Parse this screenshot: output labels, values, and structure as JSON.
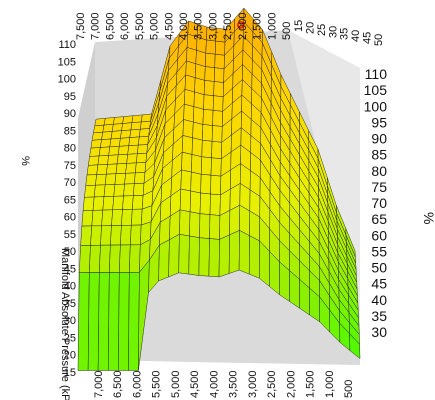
{
  "chart_data": {
    "type": "surface",
    "title": "",
    "z_unit": "%",
    "z_unit_right": "%",
    "y_axis_label": "Manifold Absolute Pressure (kPa)",
    "top_axis_ticks": [
      "7,500",
      "7,000",
      "6,500",
      "6,000",
      "5,500",
      "5,000",
      "4,500",
      "4,000",
      "3,500",
      "3,000",
      "2,500",
      "2,000",
      "1,500",
      "1,000",
      "500"
    ],
    "top_right_ticks": [
      "15",
      "20",
      "25",
      "30",
      "35",
      "40",
      "45",
      "50"
    ],
    "z_ticks_left": [
      "110",
      "105",
      "100",
      "95",
      "90",
      "85",
      "80",
      "75",
      "70",
      "65",
      "60",
      "55",
      "50",
      "45",
      "40",
      "35",
      "30",
      "25",
      "20",
      "15"
    ],
    "z_ticks_right": [
      "110",
      "105",
      "100",
      "95",
      "90",
      "85",
      "80",
      "75",
      "70",
      "65",
      "60",
      "55",
      "50",
      "45",
      "40",
      "35",
      "30"
    ],
    "bottom_ticks": [
      "7,000",
      "6,500",
      "6,000",
      "5,500",
      "5,000",
      "4,500",
      "4,000",
      "3,500",
      "3,000",
      "2,500",
      "2,000",
      "1,500",
      "1,000",
      "500"
    ],
    "rpm": [
      7500,
      7000,
      6500,
      6000,
      5500,
      5000,
      4500,
      4000,
      3500,
      3000,
      2500,
      2000,
      1500,
      1000,
      500
    ],
    "surface_profile_percent": [
      83,
      83,
      83,
      83,
      100,
      106,
      104,
      103,
      108,
      102,
      90,
      80,
      70,
      55,
      43
    ],
    "zlim": [
      15,
      110
    ],
    "colormap": [
      "#27ff00",
      "#8cf000",
      "#e8f000",
      "#ffd400",
      "#ffa500"
    ]
  },
  "marker": {
    "label": "current cell",
    "color": "#ff0000"
  }
}
